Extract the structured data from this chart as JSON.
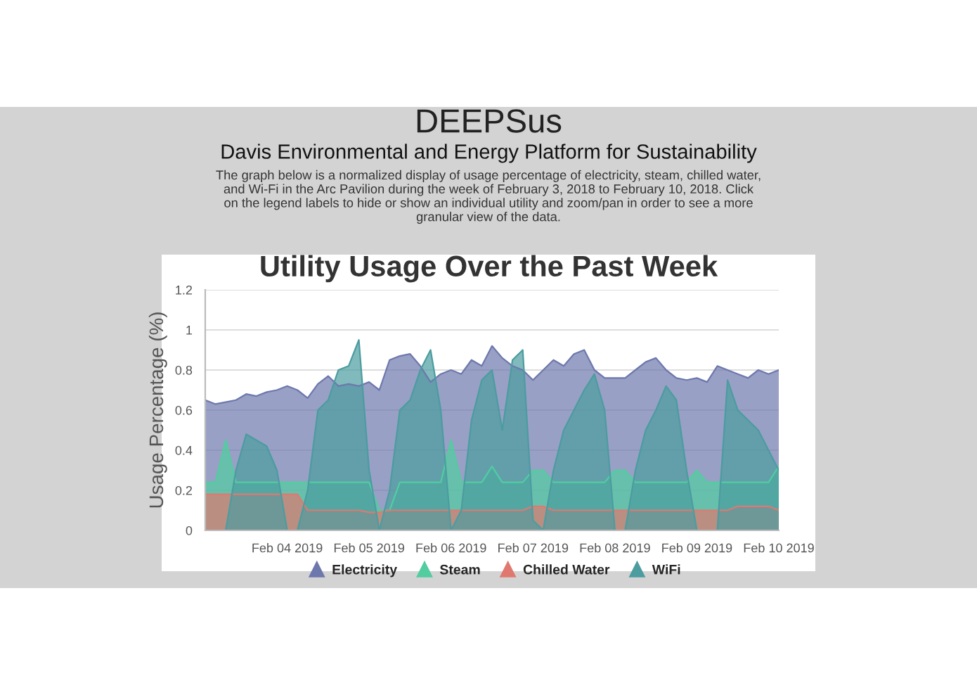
{
  "chart_data": {
    "type": "area",
    "title": "Utility Usage Over the Past Week",
    "ylabel": "Usage Percentage (%)",
    "annotations": [
      "DEEPSus",
      "Davis Environmental and Energy Platform for Sustainability",
      "The graph below is a normalized display of usage percentage of electricity, steam, chilled water, and Wi-Fi in the Arc Pavilion during the week of February 3, 2018 to February 10, 2018. Click on the legend labels to hide or show an individual utility and zoom/pan in order to see a more granular view of the data."
    ],
    "x": [
      "2019-02-03T00:00",
      "2019-02-03T03:00",
      "2019-02-03T06:00",
      "2019-02-03T09:00",
      "2019-02-03T12:00",
      "2019-02-03T15:00",
      "2019-02-03T18:00",
      "2019-02-03T21:00",
      "2019-02-04T00:00",
      "2019-02-04T03:00",
      "2019-02-04T06:00",
      "2019-02-04T09:00",
      "2019-02-04T12:00",
      "2019-02-04T15:00",
      "2019-02-04T18:00",
      "2019-02-04T21:00",
      "2019-02-05T00:00",
      "2019-02-05T03:00",
      "2019-02-05T06:00",
      "2019-02-05T09:00",
      "2019-02-05T12:00",
      "2019-02-05T15:00",
      "2019-02-05T18:00",
      "2019-02-05T21:00",
      "2019-02-06T00:00",
      "2019-02-06T03:00",
      "2019-02-06T06:00",
      "2019-02-06T09:00",
      "2019-02-06T12:00",
      "2019-02-06T15:00",
      "2019-02-06T18:00",
      "2019-02-06T21:00",
      "2019-02-07T00:00",
      "2019-02-07T03:00",
      "2019-02-07T06:00",
      "2019-02-07T09:00",
      "2019-02-07T12:00",
      "2019-02-07T15:00",
      "2019-02-07T18:00",
      "2019-02-07T21:00",
      "2019-02-08T00:00",
      "2019-02-08T03:00",
      "2019-02-08T06:00",
      "2019-02-08T09:00",
      "2019-02-08T12:00",
      "2019-02-08T15:00",
      "2019-02-08T18:00",
      "2019-02-08T21:00",
      "2019-02-09T00:00",
      "2019-02-09T03:00",
      "2019-02-09T06:00",
      "2019-02-09T09:00",
      "2019-02-09T12:00",
      "2019-02-09T15:00",
      "2019-02-09T18:00",
      "2019-02-09T21:00",
      "2019-02-10T00:00"
    ],
    "series": [
      {
        "name": "Electricity",
        "color": "#6d78ad",
        "values": [
          0.65,
          0.63,
          0.64,
          0.65,
          0.68,
          0.67,
          0.69,
          0.7,
          0.72,
          0.7,
          0.66,
          0.73,
          0.77,
          0.72,
          0.73,
          0.72,
          0.74,
          0.7,
          0.85,
          0.87,
          0.88,
          0.82,
          0.74,
          0.78,
          0.8,
          0.78,
          0.85,
          0.82,
          0.92,
          0.86,
          0.82,
          0.8,
          0.75,
          0.8,
          0.85,
          0.82,
          0.88,
          0.9,
          0.8,
          0.76,
          0.76,
          0.76,
          0.8,
          0.84,
          0.86,
          0.8,
          0.76,
          0.75,
          0.76,
          0.74,
          0.82,
          0.8,
          0.78,
          0.76,
          0.8,
          0.78,
          0.8
        ]
      },
      {
        "name": "Steam",
        "color": "#51cda0",
        "values": [
          0.24,
          0.24,
          0.45,
          0.24,
          0.24,
          0.24,
          0.24,
          0.24,
          0.24,
          0.24,
          0.24,
          0.24,
          0.24,
          0.24,
          0.24,
          0.24,
          0.24,
          0.1,
          0.1,
          0.24,
          0.24,
          0.24,
          0.24,
          0.24,
          0.45,
          0.24,
          0.24,
          0.24,
          0.32,
          0.24,
          0.24,
          0.24,
          0.3,
          0.3,
          0.24,
          0.24,
          0.24,
          0.24,
          0.24,
          0.24,
          0.3,
          0.3,
          0.24,
          0.24,
          0.24,
          0.24,
          0.24,
          0.24,
          0.3,
          0.24,
          0.24,
          0.24,
          0.24,
          0.24,
          0.24,
          0.24,
          0.32
        ]
      },
      {
        "name": "Chilled Water",
        "color": "#df7970",
        "values": [
          0.18,
          0.18,
          0.18,
          0.18,
          0.18,
          0.18,
          0.18,
          0.18,
          0.18,
          0.18,
          0.1,
          0.1,
          0.1,
          0.1,
          0.1,
          0.1,
          0.09,
          0.09,
          0.1,
          0.1,
          0.1,
          0.1,
          0.1,
          0.1,
          0.1,
          0.1,
          0.1,
          0.1,
          0.1,
          0.1,
          0.1,
          0.1,
          0.12,
          0.12,
          0.1,
          0.1,
          0.1,
          0.1,
          0.1,
          0.1,
          0.1,
          0.1,
          0.1,
          0.1,
          0.1,
          0.1,
          0.1,
          0.1,
          0.1,
          0.1,
          0.1,
          0.1,
          0.12,
          0.12,
          0.12,
          0.12,
          0.1
        ]
      },
      {
        "name": "WiFi",
        "color": "#4c9ca0",
        "values": [
          0,
          0,
          0,
          0.3,
          0.48,
          0.45,
          0.42,
          0.3,
          0,
          0,
          0.2,
          0.6,
          0.65,
          0.8,
          0.82,
          0.95,
          0.3,
          0,
          0.2,
          0.6,
          0.65,
          0.8,
          0.9,
          0.6,
          0,
          0.1,
          0.55,
          0.75,
          0.8,
          0.5,
          0.85,
          0.9,
          0.05,
          0,
          0.3,
          0.5,
          0.6,
          0.7,
          0.78,
          0.6,
          0,
          0,
          0.3,
          0.5,
          0.6,
          0.72,
          0.65,
          0.3,
          0,
          0,
          0,
          0.75,
          0.6,
          0.55,
          0.5,
          0.4,
          0.3
        ]
      }
    ],
    "xlim": [
      "2019-02-03T00:00",
      "2019-02-10T00:00"
    ],
    "xticks": [
      {
        "value": "2019-02-04",
        "label": "Feb 04 2019"
      },
      {
        "value": "2019-02-05",
        "label": "Feb 05 2019"
      },
      {
        "value": "2019-02-06",
        "label": "Feb 06 2019"
      },
      {
        "value": "2019-02-07",
        "label": "Feb 07 2019"
      },
      {
        "value": "2019-02-08",
        "label": "Feb 08 2019"
      },
      {
        "value": "2019-02-09",
        "label": "Feb 09 2019"
      },
      {
        "value": "2019-02-10",
        "label": "Feb 10 2019"
      }
    ],
    "ylim": [
      0,
      1.2
    ],
    "yticks": [
      0,
      0.2,
      0.4,
      0.6,
      0.8,
      1,
      1.2
    ],
    "grid": "y",
    "legend": "bottom"
  }
}
